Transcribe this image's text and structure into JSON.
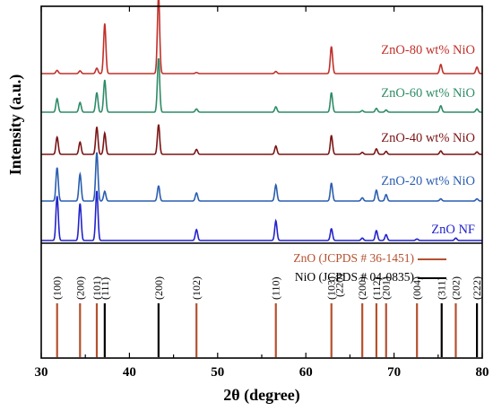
{
  "chart_data": {
    "type": "line",
    "xlabel": "2θ (degree)",
    "ylabel": "Intensity (a.u.)",
    "xlim": [
      30,
      80
    ],
    "x_ticks": [
      "30",
      "40",
      "50",
      "60",
      "70",
      "80"
    ],
    "grid": false,
    "series": [
      {
        "name": "ZnO NF",
        "color": "#2222cc",
        "peaks": [
          {
            "x": 31.8,
            "rel": 0.9
          },
          {
            "x": 34.4,
            "rel": 0.75
          },
          {
            "x": 36.3,
            "rel": 1.0
          },
          {
            "x": 47.6,
            "rel": 0.22
          },
          {
            "x": 56.6,
            "rel": 0.4
          },
          {
            "x": 62.9,
            "rel": 0.24
          },
          {
            "x": 66.4,
            "rel": 0.05
          },
          {
            "x": 68.0,
            "rel": 0.2
          },
          {
            "x": 69.1,
            "rel": 0.12
          },
          {
            "x": 72.6,
            "rel": 0.03
          },
          {
            "x": 77.0,
            "rel": 0.05
          }
        ]
      },
      {
        "name": "ZnO-20 wt% NiO",
        "color": "#2a5db0",
        "peaks": [
          {
            "x": 31.8,
            "rel": 0.62
          },
          {
            "x": 34.4,
            "rel": 0.5
          },
          {
            "x": 36.3,
            "rel": 0.9
          },
          {
            "x": 37.2,
            "rel": 0.18
          },
          {
            "x": 43.3,
            "rel": 0.28
          },
          {
            "x": 47.6,
            "rel": 0.15
          },
          {
            "x": 56.6,
            "rel": 0.3
          },
          {
            "x": 62.9,
            "rel": 0.33
          },
          {
            "x": 66.4,
            "rel": 0.06
          },
          {
            "x": 68.0,
            "rel": 0.2
          },
          {
            "x": 69.1,
            "rel": 0.12
          },
          {
            "x": 75.3,
            "rel": 0.04
          },
          {
            "x": 79.4,
            "rel": 0.04
          }
        ]
      },
      {
        "name": "ZnO-40 wt% NiO",
        "color": "#7a1515",
        "peaks": [
          {
            "x": 31.8,
            "rel": 0.35
          },
          {
            "x": 34.4,
            "rel": 0.25
          },
          {
            "x": 36.3,
            "rel": 0.55
          },
          {
            "x": 37.2,
            "rel": 0.43
          },
          {
            "x": 43.3,
            "rel": 0.6
          },
          {
            "x": 47.6,
            "rel": 0.1
          },
          {
            "x": 56.6,
            "rel": 0.17
          },
          {
            "x": 62.9,
            "rel": 0.38
          },
          {
            "x": 66.4,
            "rel": 0.04
          },
          {
            "x": 68.0,
            "rel": 0.11
          },
          {
            "x": 69.1,
            "rel": 0.06
          },
          {
            "x": 75.3,
            "rel": 0.07
          },
          {
            "x": 79.4,
            "rel": 0.05
          }
        ]
      },
      {
        "name": "ZnO-60 wt% NiO",
        "color": "#2e8b67",
        "peaks": [
          {
            "x": 31.8,
            "rel": 0.25
          },
          {
            "x": 34.4,
            "rel": 0.18
          },
          {
            "x": 36.3,
            "rel": 0.36
          },
          {
            "x": 37.2,
            "rel": 0.6
          },
          {
            "x": 43.3,
            "rel": 1.0
          },
          {
            "x": 47.6,
            "rel": 0.06
          },
          {
            "x": 56.6,
            "rel": 0.1
          },
          {
            "x": 62.9,
            "rel": 0.36
          },
          {
            "x": 66.4,
            "rel": 0.03
          },
          {
            "x": 68.0,
            "rel": 0.07
          },
          {
            "x": 69.1,
            "rel": 0.04
          },
          {
            "x": 75.3,
            "rel": 0.12
          },
          {
            "x": 79.4,
            "rel": 0.06
          }
        ]
      },
      {
        "name": "ZnO-80 wt% NiO",
        "color": "#c0302a",
        "peaks": [
          {
            "x": 31.8,
            "rel": 0.06
          },
          {
            "x": 34.4,
            "rel": 0.05
          },
          {
            "x": 36.3,
            "rel": 0.1
          },
          {
            "x": 37.2,
            "rel": 0.93
          },
          {
            "x": 43.3,
            "rel": 1.45
          },
          {
            "x": 47.6,
            "rel": 0.02
          },
          {
            "x": 56.6,
            "rel": 0.04
          },
          {
            "x": 62.9,
            "rel": 0.5
          },
          {
            "x": 75.3,
            "rel": 0.17
          },
          {
            "x": 79.4,
            "rel": 0.12
          }
        ]
      }
    ],
    "reference_patterns": {
      "legend": [
        {
          "name": "ZnO (JCPDS # 36-1451)",
          "color": "#b5502e"
        },
        {
          "name": "NiO (JCPDS # 04-0835)",
          "color": "#000000"
        }
      ],
      "lines": [
        {
          "x": 31.8,
          "hkl": "(100)",
          "phase": "ZnO",
          "rel": 0.6
        },
        {
          "x": 34.4,
          "hkl": "(200)",
          "phase": "ZnO",
          "rel": 0.6
        },
        {
          "x": 36.3,
          "hkl": "(101)",
          "phase": "ZnO",
          "rel": 0.6
        },
        {
          "x": 37.2,
          "hkl": "(111)",
          "phase": "NiO",
          "rel": 0.6
        },
        {
          "x": 43.3,
          "hkl": "(200)",
          "phase": "NiO",
          "rel": 0.6
        },
        {
          "x": 47.6,
          "hkl": "(102)",
          "phase": "ZnO",
          "rel": 0.6
        },
        {
          "x": 56.6,
          "hkl": "(110)",
          "phase": "ZnO",
          "rel": 0.6
        },
        {
          "x": 62.9,
          "hkl": "(103)",
          "phase": "ZnO",
          "rel": 0.6
        },
        {
          "x": 62.9,
          "hkl": "(220)",
          "phase": "NiO",
          "rel": 0.55
        },
        {
          "x": 66.4,
          "hkl": "(200)",
          "phase": "ZnO",
          "rel": 0.6
        },
        {
          "x": 68.0,
          "hkl": "(112)",
          "phase": "ZnO",
          "rel": 0.6
        },
        {
          "x": 69.1,
          "hkl": "(201)",
          "phase": "ZnO",
          "rel": 0.6
        },
        {
          "x": 72.6,
          "hkl": "(004)",
          "phase": "ZnO",
          "rel": 0.6
        },
        {
          "x": 75.4,
          "hkl": "(311)",
          "phase": "NiO",
          "rel": 0.6
        },
        {
          "x": 77.0,
          "hkl": "(202)",
          "phase": "ZnO",
          "rel": 0.6
        },
        {
          "x": 79.4,
          "hkl": "(222)",
          "phase": "NiO",
          "rel": 0.6
        }
      ]
    }
  }
}
